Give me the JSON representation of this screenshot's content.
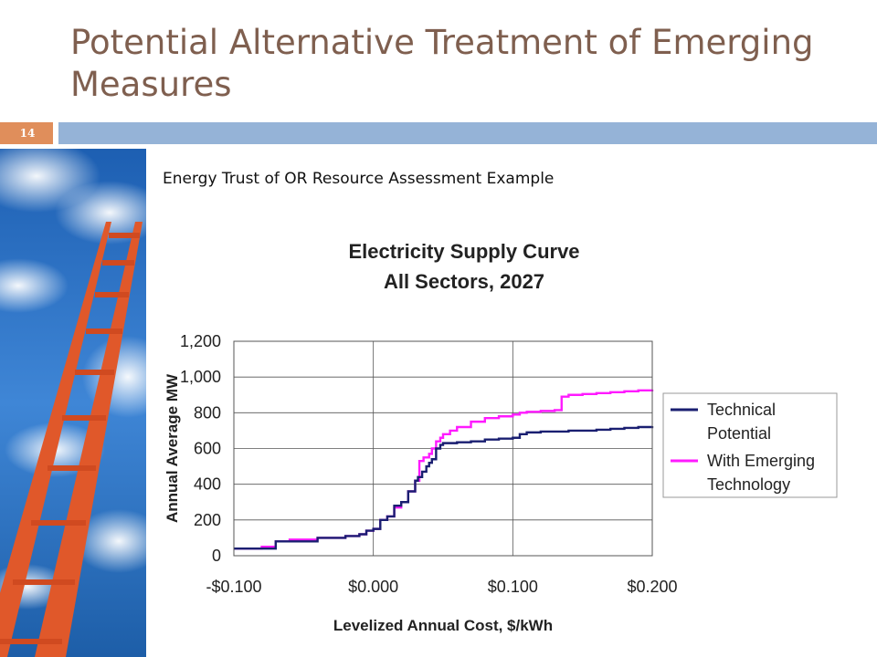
{
  "slide": {
    "title": "Potential Alternative Treatment of Emerging Measures",
    "number": "14",
    "subtitle": "Energy Trust of OR Resource Assessment Example"
  },
  "colors": {
    "title": "#7f5f4f",
    "accent": "#e08e5b",
    "bar": "#95b3d7",
    "technical": "#1a1f71",
    "emerging": "#ff1aff"
  },
  "icons": {
    "side_image": "ladder-to-sky-image"
  },
  "chart_data": {
    "type": "line",
    "title_lines": [
      "Electricity Supply Curve",
      "All Sectors, 2027"
    ],
    "xlabel": "Levelized Annual Cost, $/kWh",
    "ylabel": "Annual Average MW",
    "xlim": [
      -0.1,
      0.2
    ],
    "ylim": [
      0,
      1200
    ],
    "x_ticks": [
      -0.1,
      0,
      0.1,
      0.2
    ],
    "x_tick_labels": [
      "-$0.100",
      "$0.000",
      "$0.100",
      "$0.200"
    ],
    "y_ticks": [
      0,
      200,
      400,
      600,
      800,
      1000,
      1200
    ],
    "y_tick_labels": [
      "0",
      "200",
      "400",
      "600",
      "800",
      "1,000",
      "1,200"
    ],
    "grid": true,
    "legend_position": "right",
    "series": [
      {
        "name": "Technical Potential",
        "color": "#1a1f71",
        "x": [
          -0.1,
          -0.07,
          -0.04,
          -0.02,
          -0.01,
          -0.005,
          0.0,
          0.005,
          0.01,
          0.015,
          0.02,
          0.025,
          0.03,
          0.032,
          0.035,
          0.038,
          0.04,
          0.042,
          0.045,
          0.048,
          0.05,
          0.06,
          0.07,
          0.08,
          0.09,
          0.1,
          0.105,
          0.11,
          0.12,
          0.13,
          0.14,
          0.15,
          0.16,
          0.17,
          0.18,
          0.19,
          0.2
        ],
        "y": [
          40,
          80,
          100,
          110,
          120,
          140,
          150,
          200,
          220,
          280,
          300,
          360,
          420,
          440,
          470,
          500,
          520,
          540,
          600,
          620,
          630,
          635,
          640,
          650,
          655,
          660,
          680,
          690,
          695,
          695,
          700,
          700,
          705,
          710,
          715,
          720,
          725
        ]
      },
      {
        "name": "With Emerging Technology",
        "color": "#ff1aff",
        "x": [
          -0.1,
          -0.08,
          -0.07,
          -0.06,
          -0.04,
          -0.02,
          -0.01,
          -0.005,
          0.0,
          0.005,
          0.01,
          0.015,
          0.02,
          0.025,
          0.03,
          0.033,
          0.036,
          0.04,
          0.042,
          0.045,
          0.048,
          0.05,
          0.055,
          0.06,
          0.07,
          0.08,
          0.09,
          0.1,
          0.105,
          0.11,
          0.12,
          0.13,
          0.135,
          0.14,
          0.15,
          0.16,
          0.17,
          0.18,
          0.19,
          0.2
        ],
        "y": [
          40,
          50,
          80,
          90,
          100,
          110,
          120,
          140,
          150,
          200,
          220,
          270,
          300,
          360,
          420,
          530,
          550,
          570,
          600,
          640,
          660,
          680,
          700,
          720,
          750,
          770,
          780,
          790,
          800,
          805,
          810,
          815,
          890,
          900,
          905,
          910,
          915,
          920,
          925,
          930
        ]
      }
    ]
  }
}
